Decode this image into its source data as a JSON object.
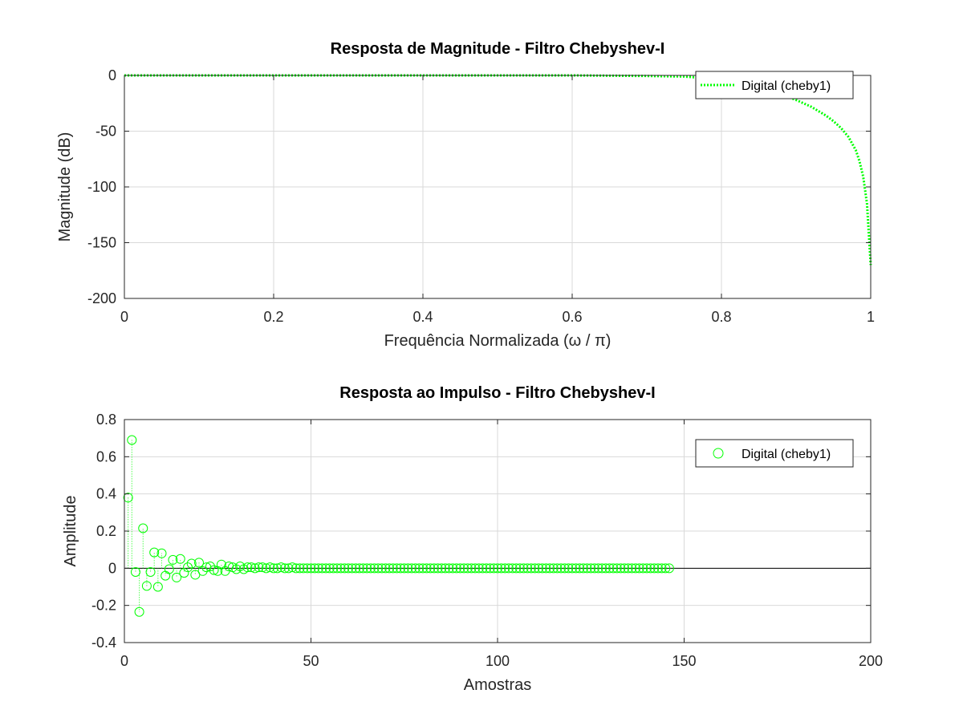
{
  "colors": {
    "series": "#00ff00",
    "grid": "#d9d9d9",
    "axis": "#262626",
    "zero_line": "#000000"
  },
  "chart_data": [
    {
      "type": "line",
      "title": "Resposta de Magnitude - Filtro Chebyshev-I",
      "xlabel": "Frequência Normalizada (ω / π)",
      "ylabel": "Magnitude (dB)",
      "xlim": [
        0,
        1
      ],
      "ylim": [
        -200,
        0
      ],
      "xticks": [
        0,
        0.2,
        0.4,
        0.6,
        0.8,
        1
      ],
      "xtick_labels": [
        "0",
        "0.2",
        "0.4",
        "0.6",
        "0.8",
        "1"
      ],
      "yticks": [
        0,
        -50,
        -100,
        -150,
        -200
      ],
      "ytick_labels": [
        "0",
        "-50",
        "-100",
        "-150",
        "-200"
      ],
      "grid": true,
      "legend_position": "top-right",
      "series": [
        {
          "name": "Digital (cheby1)",
          "style": "dotted",
          "x": [
            0,
            0.1,
            0.2,
            0.3,
            0.4,
            0.5,
            0.6,
            0.7,
            0.75,
            0.78,
            0.8,
            0.82,
            0.84,
            0.86,
            0.88,
            0.9,
            0.92,
            0.94,
            0.95,
            0.96,
            0.97,
            0.98,
            0.985,
            0.99,
            0.995,
            1.0
          ],
          "y": [
            0,
            0,
            0,
            0,
            0,
            0,
            0,
            -0.5,
            -1,
            -2.5,
            -4,
            -6.5,
            -9.5,
            -13,
            -17,
            -22,
            -28,
            -36,
            -41,
            -47,
            -55,
            -67,
            -77,
            -91,
            -115,
            -170
          ]
        }
      ]
    },
    {
      "type": "scatter",
      "subtype": "stem",
      "title": "Resposta ao Impulso - Filtro Chebyshev-I",
      "xlabel": "Amostras",
      "ylabel": "Amplitude",
      "xlim": [
        0,
        200
      ],
      "ylim": [
        -0.4,
        0.8
      ],
      "xticks": [
        0,
        50,
        100,
        150,
        200
      ],
      "xtick_labels": [
        "0",
        "50",
        "100",
        "150",
        "200"
      ],
      "yticks": [
        0.8,
        0.6,
        0.4,
        0.2,
        0,
        -0.2,
        -0.4
      ],
      "ytick_labels": [
        "0.8",
        "0.6",
        "0.4",
        "0.2",
        "0",
        "-0.2",
        "-0.4"
      ],
      "grid": true,
      "legend_position": "top-right",
      "series": [
        {
          "name": "Digital (cheby1)",
          "marker": "circle",
          "x_start": 1,
          "values": [
            0.38,
            0.69,
            -0.02,
            -0.235,
            0.215,
            -0.095,
            -0.02,
            0.085,
            -0.1,
            0.08,
            -0.04,
            -0.005,
            0.045,
            -0.05,
            0.05,
            -0.025,
            0.005,
            0.025,
            -0.035,
            0.03,
            -0.015,
            0.005,
            0.01,
            -0.01,
            -0.015,
            0.02,
            -0.015,
            0.01,
            0.005,
            -0.005,
            0.01,
            -0.005,
            0.005,
            0.005,
            0.0,
            0.005,
            0.005,
            0.0,
            0.005,
            0.0,
            0.0,
            0.005,
            0.0,
            0.0,
            0.005,
            0.0,
            0.0,
            0.0,
            0.0,
            0.0,
            0.0,
            0.0,
            0.0,
            0.0,
            0.0,
            0.0,
            0.0,
            0.0,
            0.0,
            0.0,
            0.0,
            0.0,
            0.0,
            0.0,
            0.0,
            0.0,
            0.0,
            0.0,
            0.0,
            0.0,
            0.0,
            0.0,
            0.0,
            0.0,
            0.0,
            0.0,
            0.0,
            0.0,
            0.0,
            0.0,
            0.0,
            0.0,
            0.0,
            0.0,
            0.0,
            0.0,
            0.0,
            0.0,
            0.0,
            0.0,
            0.0,
            0.0,
            0.0,
            0.0,
            0.0,
            0.0,
            0.0,
            0.0,
            0.0,
            0.0,
            0.0,
            0.0,
            0.0,
            0.0,
            0.0,
            0.0,
            0.0,
            0.0,
            0.0,
            0.0,
            0.0,
            0.0,
            0.0,
            0.0,
            0.0,
            0.0,
            0.0,
            0.0,
            0.0,
            0.0,
            0.0,
            0.0,
            0.0,
            0.0,
            0.0,
            0.0,
            0.0,
            0.0,
            0.0,
            0.0,
            0.0,
            0.0,
            0.0,
            0.0,
            0.0,
            0.0,
            0.0,
            0.0,
            0.0,
            0.0,
            0.0,
            0.0,
            0.0,
            0.0,
            0.0,
            0.0
          ]
        }
      ]
    }
  ]
}
